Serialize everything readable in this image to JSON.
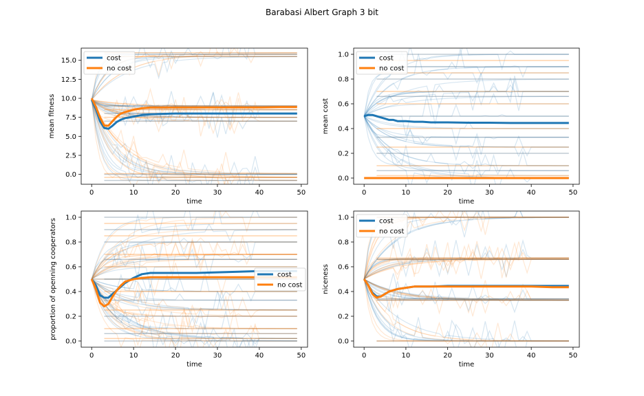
{
  "figure": {
    "title": "Barabasi Albert Graph 3 bit"
  },
  "colors": {
    "cost": "#1f77b4",
    "no_cost": "#ff7f0e"
  },
  "chart_data": [
    {
      "type": "line",
      "xlabel": "time",
      "ylabel": "mean fitness",
      "xlim": [
        -2.5,
        51.5
      ],
      "ylim": [
        -1.3,
        16.6
      ],
      "xticks": [
        0,
        10,
        20,
        30,
        40,
        50
      ],
      "yticks": [
        0.0,
        2.5,
        5.0,
        7.5,
        10.0,
        12.5,
        15.0
      ],
      "ytick_labels": [
        "0.0",
        "2.5",
        "5.0",
        "7.5",
        "10.0",
        "12.5",
        "15.0"
      ],
      "legend": {
        "position": "upper-left",
        "entries": [
          "cost",
          "no cost"
        ]
      },
      "x": [
        0,
        1,
        2,
        3,
        4,
        5,
        6,
        7,
        8,
        10,
        12,
        14,
        16,
        20,
        25,
        30,
        35,
        40,
        45,
        49
      ],
      "series": [
        {
          "name": "cost",
          "values": [
            9.8,
            8.6,
            7.0,
            6.1,
            6.0,
            6.4,
            6.9,
            7.2,
            7.4,
            7.6,
            7.8,
            7.9,
            7.95,
            8.0,
            8.0,
            8.0,
            8.0,
            8.0,
            8.0,
            8.0
          ]
        },
        {
          "name": "no cost",
          "values": [
            10.0,
            8.9,
            7.5,
            6.4,
            6.4,
            7.0,
            7.6,
            8.0,
            8.2,
            8.5,
            8.7,
            8.8,
            8.8,
            8.8,
            8.8,
            8.8,
            8.8,
            8.8,
            8.85,
            8.85
          ]
        }
      ]
    },
    {
      "type": "line",
      "xlabel": "time",
      "ylabel": "mean cost",
      "xlim": [
        -2.5,
        51.5
      ],
      "ylim": [
        -0.05,
        1.05
      ],
      "xticks": [
        0,
        10,
        20,
        30,
        40,
        50
      ],
      "yticks": [
        0.0,
        0.2,
        0.4,
        0.6,
        0.8,
        1.0
      ],
      "ytick_labels": [
        "0.0",
        "0.2",
        "0.4",
        "0.6",
        "0.8",
        "1.0"
      ],
      "legend": {
        "position": "upper-left",
        "entries": [
          "cost",
          "no cost"
        ]
      },
      "x": [
        0,
        1,
        2,
        3,
        4,
        5,
        6,
        7,
        8,
        10,
        12,
        14,
        16,
        20,
        25,
        30,
        35,
        40,
        45,
        49
      ],
      "series": [
        {
          "name": "cost",
          "values": [
            0.5,
            0.51,
            0.51,
            0.5,
            0.49,
            0.48,
            0.47,
            0.47,
            0.46,
            0.46,
            0.455,
            0.455,
            0.45,
            0.45,
            0.447,
            0.447,
            0.445,
            0.445,
            0.445,
            0.445
          ]
        },
        {
          "name": "no cost",
          "values": [
            0,
            0,
            0,
            0,
            0,
            0,
            0,
            0,
            0,
            0,
            0,
            0,
            0,
            0,
            0,
            0,
            0,
            0,
            0,
            0
          ]
        }
      ]
    },
    {
      "type": "line",
      "xlabel": "time",
      "ylabel": "proportion of openning cooperators",
      "xlim": [
        -2.5,
        51.5
      ],
      "ylim": [
        -0.05,
        1.05
      ],
      "xticks": [
        0,
        10,
        20,
        30,
        40,
        50
      ],
      "yticks": [
        0.0,
        0.2,
        0.4,
        0.6,
        0.8,
        1.0
      ],
      "ytick_labels": [
        "0.0",
        "0.2",
        "0.4",
        "0.6",
        "0.8",
        "1.0"
      ],
      "legend": {
        "position": "center-right",
        "entries": [
          "cost",
          "no cost"
        ]
      },
      "x": [
        0,
        1,
        2,
        3,
        4,
        5,
        6,
        7,
        8,
        10,
        12,
        14,
        16,
        20,
        25,
        30,
        35,
        40,
        45,
        49
      ],
      "series": [
        {
          "name": "cost",
          "values": [
            0.5,
            0.45,
            0.37,
            0.35,
            0.35,
            0.38,
            0.41,
            0.44,
            0.47,
            0.51,
            0.54,
            0.55,
            0.55,
            0.55,
            0.55,
            0.555,
            0.56,
            0.565,
            0.565,
            0.565
          ]
        },
        {
          "name": "no cost",
          "values": [
            0.5,
            0.42,
            0.31,
            0.28,
            0.3,
            0.36,
            0.41,
            0.45,
            0.48,
            0.5,
            0.51,
            0.515,
            0.515,
            0.515,
            0.515,
            0.515,
            0.515,
            0.515,
            0.515,
            0.515
          ]
        }
      ]
    },
    {
      "type": "line",
      "xlabel": "time",
      "ylabel": "niceness",
      "xlim": [
        -2.5,
        51.5
      ],
      "ylim": [
        -0.05,
        1.05
      ],
      "xticks": [
        0,
        10,
        20,
        30,
        40,
        50
      ],
      "yticks": [
        0.0,
        0.2,
        0.4,
        0.6,
        0.8,
        1.0
      ],
      "ytick_labels": [
        "0.0",
        "0.2",
        "0.4",
        "0.6",
        "0.8",
        "1.0"
      ],
      "legend": {
        "position": "upper-left",
        "entries": [
          "cost",
          "no cost"
        ]
      },
      "x": [
        0,
        1,
        2,
        3,
        4,
        5,
        6,
        7,
        8,
        10,
        12,
        14,
        16,
        20,
        25,
        30,
        35,
        40,
        45,
        49
      ],
      "series": [
        {
          "name": "cost",
          "values": [
            0.5,
            0.45,
            0.39,
            0.36,
            0.36,
            0.38,
            0.4,
            0.41,
            0.42,
            0.43,
            0.44,
            0.44,
            0.44,
            0.445,
            0.445,
            0.445,
            0.445,
            0.445,
            0.445,
            0.445
          ]
        },
        {
          "name": "no cost",
          "values": [
            0.5,
            0.45,
            0.38,
            0.35,
            0.36,
            0.38,
            0.4,
            0.41,
            0.42,
            0.43,
            0.44,
            0.44,
            0.44,
            0.44,
            0.44,
            0.44,
            0.44,
            0.44,
            0.435,
            0.435
          ]
        }
      ]
    }
  ]
}
